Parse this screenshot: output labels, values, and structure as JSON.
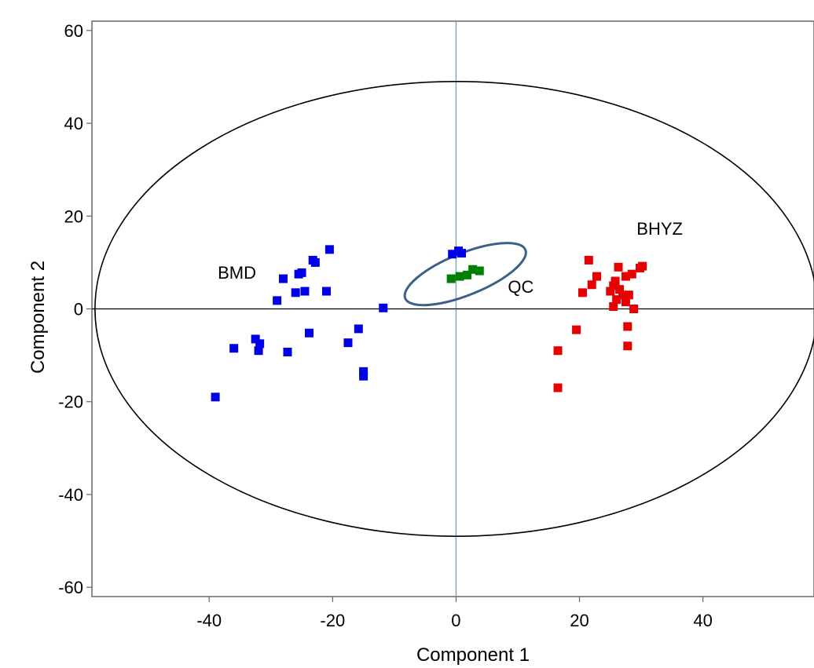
{
  "chart_data": {
    "type": "scatter",
    "xlabel": "Component 1",
    "ylabel": "Component 2",
    "xlim": [
      -59,
      58
    ],
    "ylim": [
      -62,
      62
    ],
    "xticks": [
      "-40",
      "-20",
      "0",
      "20",
      "40"
    ],
    "yticks": [
      "60",
      "40",
      "20",
      "0",
      "-20",
      "-40",
      "-60"
    ],
    "xtick_values": [
      -40,
      -20,
      0,
      20,
      40
    ],
    "ytick_values": [
      60,
      40,
      20,
      0,
      -20,
      -40,
      -60
    ],
    "grid": false,
    "reference_lines": {
      "x": 0,
      "y": 0
    },
    "confidence_ellipse": {
      "center": [
        0,
        0
      ],
      "rx": 58.5,
      "ry": 49
    },
    "group_ellipse": {
      "center": [
        1.5,
        7.5
      ],
      "rx": 10.5,
      "ry": 4.5,
      "angle": -22
    },
    "annotations": [
      {
        "text": "BMD",
        "x": -35.5,
        "y": 6.5
      },
      {
        "text": "QC",
        "x": 10.5,
        "y": 3.5
      },
      {
        "text": "BHYZ",
        "x": 33,
        "y": 16
      }
    ],
    "series": [
      {
        "color": "#0000e6",
        "points": [
          [
            -39,
            -19
          ],
          [
            -36,
            -8.5
          ],
          [
            -32.5,
            -6.5
          ],
          [
            -32,
            -9
          ],
          [
            -31.8,
            -7.5
          ],
          [
            -29,
            1.8
          ],
          [
            -28,
            6.5
          ],
          [
            -27.3,
            -9.3
          ],
          [
            -26,
            3.5
          ],
          [
            -25.5,
            7.5
          ],
          [
            -25,
            7.8
          ],
          [
            -24.5,
            3.8
          ],
          [
            -23.8,
            -5.2
          ],
          [
            -23.2,
            10.5
          ],
          [
            -22.8,
            10
          ],
          [
            -21,
            3.8
          ],
          [
            -20.5,
            12.8
          ],
          [
            -17.5,
            -7.3
          ],
          [
            -15.8,
            -4.3
          ],
          [
            -15,
            -13.5
          ],
          [
            -15,
            -14.5
          ],
          [
            -11.8,
            0.2
          ],
          [
            -0.6,
            11.8
          ],
          [
            0.4,
            12.5
          ],
          [
            0.9,
            12
          ]
        ]
      },
      {
        "color": "#008000",
        "points": [
          [
            -0.8,
            6.5
          ],
          [
            0.6,
            7
          ],
          [
            1.8,
            7.3
          ],
          [
            2.7,
            8.5
          ],
          [
            3.8,
            8.2
          ]
        ]
      },
      {
        "color": "#e60000",
        "points": [
          [
            16.5,
            -9
          ],
          [
            16.5,
            -17
          ],
          [
            19.5,
            -4.5
          ],
          [
            20.5,
            3.5
          ],
          [
            21.5,
            10.5
          ],
          [
            22,
            5.2
          ],
          [
            22.8,
            7
          ],
          [
            25,
            3.8
          ],
          [
            25.5,
            5
          ],
          [
            25.5,
            0.5
          ],
          [
            25.8,
            6
          ],
          [
            26,
            2
          ],
          [
            26.3,
            9
          ],
          [
            26.5,
            4.2
          ],
          [
            27,
            3
          ],
          [
            27.5,
            7
          ],
          [
            27.5,
            1.5
          ],
          [
            27.8,
            -3.8
          ],
          [
            27.8,
            -8
          ],
          [
            28,
            3
          ],
          [
            28.5,
            7.5
          ],
          [
            28.8,
            0
          ],
          [
            29.8,
            8.8
          ],
          [
            30.2,
            9.2
          ]
        ]
      }
    ]
  }
}
